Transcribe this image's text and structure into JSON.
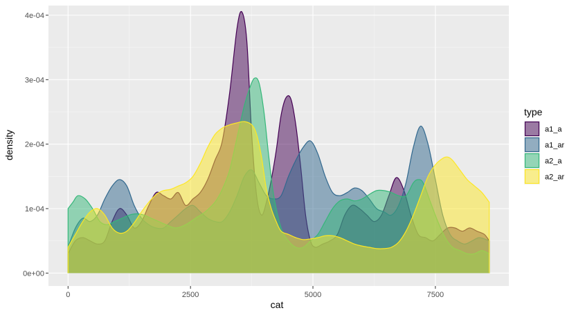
{
  "chart_data": {
    "type": "area",
    "subtype": "density",
    "xlabel": "cat",
    "ylabel": "density",
    "xlim": [
      -400,
      9000
    ],
    "ylim": [
      -2e-05,
      0.000415
    ],
    "x_ticks": [
      0,
      2500,
      5000,
      7500
    ],
    "x_tick_labels": [
      "0",
      "2500",
      "5000",
      "7500"
    ],
    "y_ticks": [
      0,
      0.0001,
      0.0002,
      0.0003,
      0.0004
    ],
    "y_tick_labels": [
      "0e+00",
      "1e-04",
      "2e-04",
      "3e-04",
      "4e-04"
    ],
    "grid": true,
    "legend": {
      "title": "type",
      "position": "right",
      "entries": [
        "a1_a",
        "a1_ar",
        "a2_a",
        "a2_ar"
      ]
    },
    "colors": {
      "panel_bg": "#EBEBEB",
      "grid_major": "#FFFFFF",
      "grid_minor": "#F5F5F5"
    },
    "series": [
      {
        "name": "a1_a",
        "fill": "#440154",
        "line": "#440154",
        "x": [
          0,
          150,
          300,
          450,
          600,
          750,
          900,
          1050,
          1200,
          1350,
          1500,
          1650,
          1800,
          1950,
          2100,
          2250,
          2400,
          2550,
          2700,
          2850,
          3000,
          3150,
          3300,
          3450,
          3550,
          3650,
          3750,
          3850,
          3950,
          4050,
          4150,
          4250,
          4350,
          4450,
          4550,
          4650,
          4750,
          4850,
          4950,
          5050,
          5200,
          5350,
          5500,
          5650,
          5800,
          5950,
          6100,
          6250,
          6400,
          6550,
          6700,
          6850,
          7000,
          7150,
          7300,
          7450,
          7600,
          7750,
          7900,
          8050,
          8200,
          8350,
          8500,
          8600
        ],
        "y": [
          3e-05,
          5e-05,
          5.5e-05,
          5e-05,
          4.5e-05,
          5e-05,
          8e-05,
          0.0001,
          9e-05,
          7e-05,
          8e-05,
          0.000105,
          0.000125,
          0.00012,
          0.000115,
          0.000125,
          0.000105,
          0.000115,
          0.000125,
          0.000145,
          0.000175,
          0.000205,
          0.00028,
          0.00038,
          0.000405,
          0.00036,
          0.000215,
          0.00012,
          9e-05,
          0.00011,
          0.000145,
          0.00019,
          0.000245,
          0.000272,
          0.00027,
          0.00023,
          0.000165,
          9e-05,
          5e-05,
          4e-05,
          4.5e-05,
          5e-05,
          6e-05,
          9e-05,
          0.000105,
          0.0001,
          9e-05,
          8e-05,
          9e-05,
          0.00012,
          0.000148,
          0.00013,
          9e-05,
          6e-05,
          5.5e-05,
          5e-05,
          6e-05,
          7e-05,
          7e-05,
          6.5e-05,
          7e-05,
          6.5e-05,
          6e-05,
          5e-05
        ]
      },
      {
        "name": "a1_ar",
        "fill": "#31688E",
        "line": "#31688E",
        "x": [
          0,
          150,
          300,
          450,
          600,
          750,
          900,
          1050,
          1200,
          1350,
          1500,
          1650,
          1800,
          1950,
          2100,
          2250,
          2400,
          2550,
          2700,
          2850,
          3000,
          3150,
          3300,
          3450,
          3600,
          3750,
          3900,
          4050,
          4200,
          4350,
          4500,
          4650,
          4800,
          4950,
          5100,
          5250,
          5400,
          5550,
          5700,
          5850,
          6000,
          6150,
          6300,
          6450,
          6600,
          6750,
          6900,
          7050,
          7200,
          7350,
          7500,
          7650,
          7800,
          7950,
          8100,
          8250,
          8400,
          8600
        ],
        "y": [
          4e-05,
          7e-05,
          8.5e-05,
          8e-05,
          9e-05,
          0.000115,
          0.000135,
          0.000145,
          0.000135,
          0.000105,
          8.5e-05,
          7.5e-05,
          7e-05,
          7e-05,
          8e-05,
          9e-05,
          0.0001,
          0.000105,
          9.5e-05,
          8.5e-05,
          8e-05,
          8e-05,
          9.5e-05,
          0.00012,
          0.00015,
          0.00016,
          0.00014,
          0.00012,
          0.000115,
          0.00012,
          0.00015,
          0.000175,
          0.000195,
          0.000205,
          0.000185,
          0.00015,
          0.000125,
          0.00012,
          0.000125,
          0.000132,
          0.000128,
          0.000115,
          0.0001,
          9.5e-05,
          9e-05,
          0.000105,
          0.00014,
          0.000195,
          0.000228,
          0.0002,
          0.000145,
          9e-05,
          6e-05,
          5e-05,
          4.5e-05,
          5e-05,
          5.5e-05,
          5e-05
        ]
      },
      {
        "name": "a2_a",
        "fill": "#35B779",
        "line": "#35B779",
        "x": [
          0,
          100,
          200,
          350,
          500,
          650,
          800,
          950,
          1100,
          1250,
          1400,
          1550,
          1700,
          1850,
          2000,
          2200,
          2400,
          2600,
          2800,
          3000,
          3150,
          3300,
          3450,
          3600,
          3700,
          3800,
          3900,
          4000,
          4100,
          4200,
          4350,
          4500,
          4650,
          4800,
          4950,
          5100,
          5250,
          5400,
          5550,
          5700,
          5850,
          6000,
          6150,
          6300,
          6450,
          6600,
          6750,
          6900,
          7050,
          7150,
          7250,
          7400,
          7550,
          7700,
          7850,
          8000,
          8150,
          8300,
          8450,
          8600
        ],
        "y": [
          0.0001,
          0.00011,
          0.00012,
          0.000115,
          0.0001,
          8e-05,
          7.5e-05,
          8e-05,
          8.5e-05,
          9e-05,
          9.2e-05,
          9e-05,
          8.5e-05,
          8e-05,
          7.5e-05,
          7e-05,
          7.5e-05,
          8.5e-05,
          9.5e-05,
          0.00011,
          0.00013,
          0.00016,
          0.00021,
          0.00026,
          0.000285,
          0.000302,
          0.000295,
          0.00025,
          0.00018,
          0.00012,
          7e-05,
          5e-05,
          4e-05,
          4e-05,
          5e-05,
          6e-05,
          8e-05,
          0.0001,
          0.000112,
          0.000115,
          0.000112,
          0.000115,
          0.000122,
          0.000128,
          0.000128,
          0.000125,
          0.00012,
          0.00012,
          0.00014,
          0.000145,
          0.00014,
          0.00011,
          8e-05,
          5.5e-05,
          4e-05,
          3.5e-05,
          3e-05,
          3e-05,
          3.5e-05,
          3e-05
        ]
      },
      {
        "name": "a2_ar",
        "fill": "#FDE725",
        "line": "#FDE725",
        "x": [
          0,
          150,
          300,
          450,
          600,
          750,
          900,
          1050,
          1200,
          1350,
          1500,
          1650,
          1800,
          1950,
          2100,
          2250,
          2400,
          2550,
          2700,
          2850,
          3000,
          3150,
          3300,
          3450,
          3600,
          3750,
          3850,
          3950,
          4050,
          4150,
          4250,
          4350,
          4500,
          4650,
          4800,
          4950,
          5100,
          5250,
          5400,
          5550,
          5700,
          5850,
          6000,
          6150,
          6300,
          6450,
          6600,
          6750,
          6900,
          7050,
          7200,
          7350,
          7500,
          7650,
          7750,
          7850,
          8000,
          8150,
          8300,
          8450,
          8600
        ],
        "y": [
          4e-05,
          6e-05,
          8e-05,
          9.5e-05,
          0.0001,
          9e-05,
          7e-05,
          6.2e-05,
          6.5e-05,
          7.8e-05,
          9.5e-05,
          0.00011,
          0.000122,
          0.000128,
          0.00013,
          0.000135,
          0.00014,
          0.00015,
          0.00017,
          0.000195,
          0.000215,
          0.000225,
          0.00023,
          0.000233,
          0.000235,
          0.00023,
          0.000215,
          0.00018,
          0.00013,
          0.0001,
          8e-05,
          6.5e-05,
          6e-05,
          5.5e-05,
          5.2e-05,
          5.3e-05,
          5.5e-05,
          5.8e-05,
          5.8e-05,
          5.5e-05,
          5e-05,
          4.5e-05,
          4.2e-05,
          4e-05,
          3.8e-05,
          3.8e-05,
          4e-05,
          4.8e-05,
          6.5e-05,
          9e-05,
          0.00012,
          0.00015,
          0.000168,
          0.000178,
          0.00018,
          0.000175,
          0.00016,
          0.000145,
          0.000135,
          0.000125,
          0.00011
        ]
      }
    ]
  }
}
